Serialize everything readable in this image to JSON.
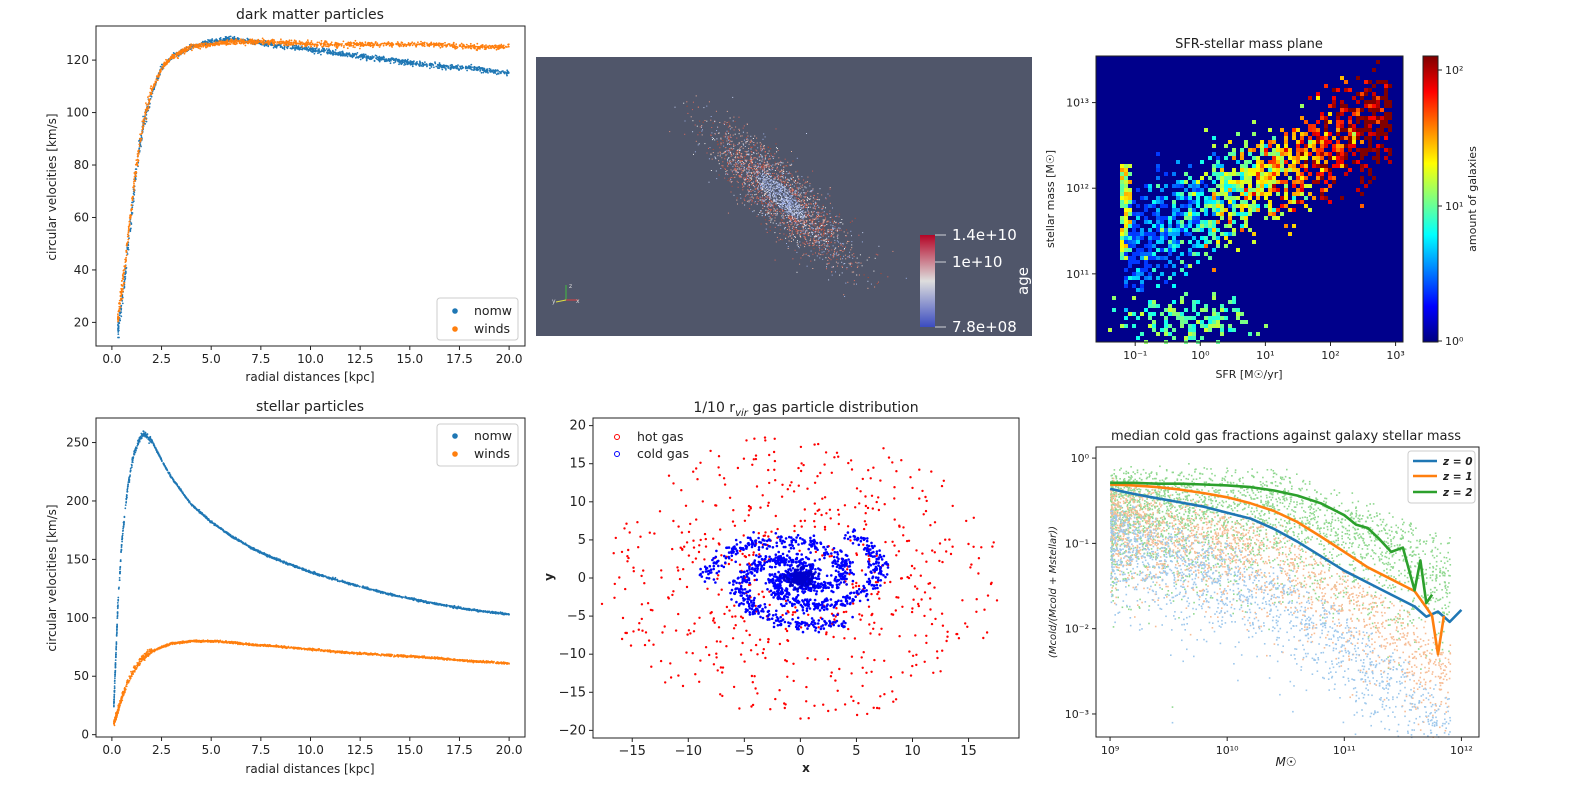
{
  "chart_data": [
    {
      "id": "dm",
      "type": "scatter",
      "title": "dark matter particles",
      "xlabel": "radial distances [kpc]",
      "ylabel": "circular velocities [km/s]",
      "xlim": [
        -0.8,
        20.8
      ],
      "ylim": [
        11,
        133
      ],
      "xticks": [
        0.0,
        2.5,
        5.0,
        7.5,
        10.0,
        12.5,
        15.0,
        17.5,
        20.0
      ],
      "xticklabels": [
        "0.0",
        "2.5",
        "5.0",
        "7.5",
        "10.0",
        "12.5",
        "15.0",
        "17.5",
        "20.0"
      ],
      "yticks": [
        20,
        40,
        60,
        80,
        100,
        120
      ],
      "yticklabels": [
        "20",
        "40",
        "60",
        "80",
        "100",
        "120"
      ],
      "legend_position": "lower right",
      "series": [
        {
          "name": "nomw",
          "color": "#1f77b4",
          "x": [
            0.3,
            0.6,
            0.9,
            1.2,
            1.6,
            2.0,
            2.5,
            3.0,
            4.0,
            5.0,
            6.0,
            7.0,
            8.0,
            10.0,
            12.0,
            14.0,
            16.0,
            18.0,
            20.0
          ],
          "y": [
            17,
            33,
            55,
            76,
            96,
            107,
            117,
            121,
            125,
            127,
            128,
            127,
            126,
            124,
            122,
            120,
            118,
            117,
            115
          ]
        },
        {
          "name": "winds",
          "color": "#ff7f0e",
          "x": [
            0.3,
            0.6,
            0.9,
            1.2,
            1.6,
            2.0,
            2.5,
            3.0,
            4.0,
            5.0,
            6.0,
            7.0,
            8.0,
            10.0,
            12.0,
            14.0,
            16.0,
            18.0,
            20.0
          ],
          "y": [
            22,
            38,
            58,
            78,
            97,
            108,
            117,
            121,
            125,
            126,
            127,
            127,
            127,
            126,
            126,
            126,
            126,
            125,
            125
          ]
        }
      ]
    },
    {
      "id": "stars",
      "type": "scatter",
      "title": "stellar particles",
      "xlabel": "radial distances [kpc]",
      "ylabel": "circular velocities [km/s]",
      "xlim": [
        -0.8,
        20.8
      ],
      "ylim": [
        -2,
        271
      ],
      "xticks": [
        0.0,
        2.5,
        5.0,
        7.5,
        10.0,
        12.5,
        15.0,
        17.5,
        20.0
      ],
      "xticklabels": [
        "0.0",
        "2.5",
        "5.0",
        "7.5",
        "10.0",
        "12.5",
        "15.0",
        "17.5",
        "20.0"
      ],
      "yticks": [
        0,
        50,
        100,
        150,
        200,
        250
      ],
      "yticklabels": [
        "0",
        "50",
        "100",
        "150",
        "200",
        "250"
      ],
      "legend_position": "upper right",
      "series": [
        {
          "name": "nomw",
          "color": "#1f77b4",
          "x": [
            0.1,
            0.3,
            0.5,
            0.8,
            1.1,
            1.4,
            1.6,
            2.0,
            2.5,
            3.0,
            4.0,
            5.0,
            6.0,
            7.0,
            8.0,
            10.0,
            12.0,
            14.0,
            16.0,
            18.0,
            20.0
          ],
          "y": [
            25,
            110,
            165,
            212,
            240,
            253,
            258,
            252,
            235,
            220,
            197,
            182,
            170,
            160,
            152,
            139,
            129,
            120,
            113,
            107,
            103
          ]
        },
        {
          "name": "winds",
          "color": "#ff7f0e",
          "x": [
            0.1,
            0.3,
            0.5,
            0.8,
            1.1,
            1.5,
            2.0,
            2.5,
            3.0,
            4.0,
            5.0,
            6.0,
            7.0,
            8.0,
            10.0,
            12.0,
            14.0,
            16.0,
            18.0,
            20.0
          ],
          "y": [
            10,
            20,
            32,
            45,
            55,
            65,
            71,
            75,
            78,
            80,
            80,
            79,
            77,
            76,
            73,
            70,
            68,
            66,
            63,
            61
          ]
        }
      ]
    },
    {
      "id": "render",
      "type": "scatter",
      "xlabel": "",
      "ylabel": "",
      "colorbar_label": "age",
      "colorbar_ticks": [
        "1.4e+10",
        "1e+10",
        "7.8e+08"
      ],
      "background": "#50566a",
      "axes_triad": [
        "z",
        "y",
        "x"
      ]
    },
    {
      "id": "sfr",
      "type": "heatmap",
      "title": "SFR-stellar mass plane",
      "xlabel": "SFR [M$_\\odot$/yr]",
      "xlabel_display": "SFR [M☉/yr]",
      "ylabel_display": "stellar mass [M☉]",
      "xscale": "log",
      "yscale": "log",
      "xlim": [
        0.025,
        1300
      ],
      "ylim": [
        16000000000.0,
        35000000000000.0
      ],
      "xticklabels": [
        "10⁻¹",
        "10⁰",
        "10¹",
        "10²",
        "10³"
      ],
      "yticklabels": [
        "10¹¹",
        "10¹²",
        "10¹³"
      ],
      "colorbar_label": "amount of galaxies",
      "colorbar_ticks": [
        "10⁰",
        "10¹",
        "10²"
      ],
      "colorscale": "jet",
      "background": "#00008b"
    },
    {
      "id": "gas",
      "type": "scatter",
      "title": "1/10 r",
      "title_sub": "vir",
      "title_rest": " gas particle distribution",
      "xlabel": "x",
      "ylabel": "y",
      "xlim": [
        -18.5,
        19.5
      ],
      "ylim": [
        -21,
        21
      ],
      "xticks": [
        -15,
        -10,
        -5,
        0,
        5,
        10,
        15
      ],
      "xticklabels": [
        "−15",
        "−10",
        "−5",
        "0",
        "5",
        "10",
        "15"
      ],
      "yticks": [
        -20,
        -15,
        -10,
        -5,
        0,
        5,
        10,
        15,
        20
      ],
      "yticklabels": [
        "−20",
        "−15",
        "−10",
        "−5",
        "0",
        "5",
        "10",
        "15",
        "20"
      ],
      "legend_position": "upper left",
      "series": [
        {
          "name": "hot gas",
          "color": "#ff0000"
        },
        {
          "name": "cold gas",
          "color": "#0000ff"
        }
      ]
    },
    {
      "id": "fgas",
      "type": "line",
      "title": "median cold gas fractions against galaxy stellar mass",
      "xlabel_display": "M☉",
      "ylabel_display": "(Mcold/(Mcold + Mstellar))",
      "xscale": "log",
      "yscale": "log",
      "xlim": [
        8.88,
        12.15
      ],
      "ylim": [
        -3.27,
        0.13
      ],
      "xticklabels": [
        "10⁹",
        "10¹⁰",
        "10¹¹",
        "10¹²"
      ],
      "yticklabels": [
        "10⁰",
        "10⁻¹",
        "10⁻²",
        "10⁻³"
      ],
      "legend_position": "upper right",
      "series": [
        {
          "name": "z = 0",
          "color": "#1f77b4",
          "x": [
            9.0,
            9.2,
            9.4,
            9.6,
            9.8,
            10.0,
            10.2,
            10.4,
            10.6,
            10.8,
            11.0,
            11.2,
            11.4,
            11.6,
            11.7,
            11.8,
            11.9,
            12.0
          ],
          "y": [
            -0.36,
            -0.42,
            -0.47,
            -0.52,
            -0.57,
            -0.64,
            -0.71,
            -0.83,
            -0.98,
            -1.15,
            -1.32,
            -1.46,
            -1.6,
            -1.74,
            -1.86,
            -1.8,
            -1.92,
            -1.78
          ]
        },
        {
          "name": "z = 1",
          "color": "#ff7f0e",
          "x": [
            9.0,
            9.2,
            9.4,
            9.6,
            9.8,
            10.0,
            10.2,
            10.4,
            10.6,
            10.8,
            11.0,
            11.2,
            11.4,
            11.6,
            11.7,
            11.75,
            11.8,
            11.85
          ],
          "y": [
            -0.31,
            -0.32,
            -0.34,
            -0.37,
            -0.41,
            -0.46,
            -0.53,
            -0.62,
            -0.75,
            -0.92,
            -1.1,
            -1.28,
            -1.42,
            -1.56,
            -1.75,
            -1.85,
            -2.3,
            -1.85
          ]
        },
        {
          "name": "z = 2",
          "color": "#2ca02c",
          "x": [
            9.0,
            9.2,
            9.4,
            9.6,
            9.8,
            10.0,
            10.2,
            10.4,
            10.6,
            10.8,
            11.0,
            11.1,
            11.2,
            11.3,
            11.4,
            11.5,
            11.6,
            11.65,
            11.7,
            11.75
          ],
          "y": [
            -0.29,
            -0.29,
            -0.3,
            -0.3,
            -0.31,
            -0.32,
            -0.34,
            -0.38,
            -0.44,
            -0.53,
            -0.67,
            -0.78,
            -0.82,
            -0.95,
            -1.1,
            -1.05,
            -1.55,
            -1.2,
            -1.7,
            -1.6
          ]
        }
      ]
    }
  ]
}
